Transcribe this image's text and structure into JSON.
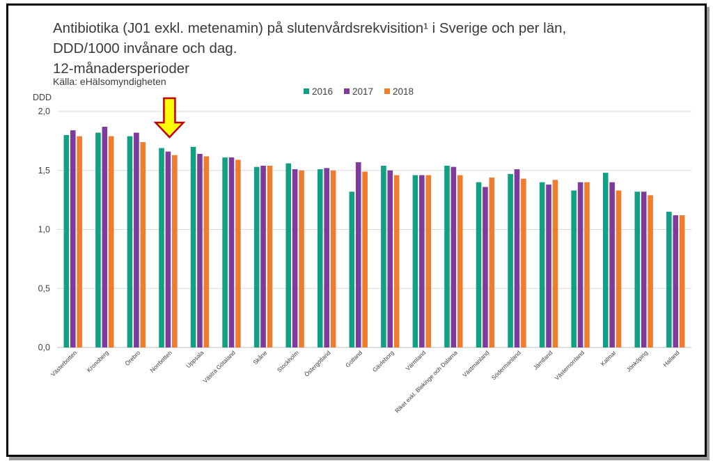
{
  "chart_data": {
    "type": "bar",
    "title_lines": [
      "Antibiotika (J01 exkl. metenamin) på slutenvårdsrekvisition¹ i Sverige och per län,",
      "DDD/1000 invånare och dag.",
      "12-månadersperioder"
    ],
    "source": "Källa: eHälsomyndigheten",
    "ylabel": "DDD",
    "ylim": [
      0,
      2.0
    ],
    "yticks": [
      "0,0",
      "0,5",
      "1,0",
      "1,5",
      "2,0"
    ],
    "grid": true,
    "legend_position": "top",
    "categories": [
      "Västerbotten",
      "Kronoberg",
      "Örebro",
      "Norrbotten",
      "Uppsala",
      "Västra Götaland",
      "Skåne",
      "Stockholm",
      "Östergötland",
      "Gotland",
      "Gävleborg",
      "Värmland",
      "Riket exkl. Blekinge och Dalarna",
      "Västmanland",
      "Södermanland",
      "Jämtland",
      "Västernorrland",
      "Kalmar",
      "Jönköping",
      "Halland"
    ],
    "series": [
      {
        "name": "2016",
        "color": "#12a085",
        "values": [
          1.8,
          1.82,
          1.79,
          1.69,
          1.7,
          1.61,
          1.53,
          1.56,
          1.51,
          1.32,
          1.54,
          1.46,
          1.54,
          1.4,
          1.47,
          1.4,
          1.33,
          1.48,
          1.32,
          1.15
        ]
      },
      {
        "name": "2017",
        "color": "#7e3b9b",
        "values": [
          1.84,
          1.87,
          1.82,
          1.66,
          1.64,
          1.61,
          1.54,
          1.51,
          1.52,
          1.57,
          1.5,
          1.46,
          1.53,
          1.36,
          1.51,
          1.38,
          1.4,
          1.4,
          1.32,
          1.12
        ]
      },
      {
        "name": "2018",
        "color": "#f07d2e",
        "values": [
          1.79,
          1.79,
          1.74,
          1.63,
          1.62,
          1.59,
          1.54,
          1.5,
          1.5,
          1.49,
          1.46,
          1.46,
          1.46,
          1.44,
          1.43,
          1.42,
          1.4,
          1.33,
          1.29,
          1.12
        ]
      }
    ]
  },
  "annotation": {
    "icon": "down-arrow-icon",
    "target_category": "Norrbotten",
    "fill": "#ffff00",
    "stroke": "#c00000"
  }
}
